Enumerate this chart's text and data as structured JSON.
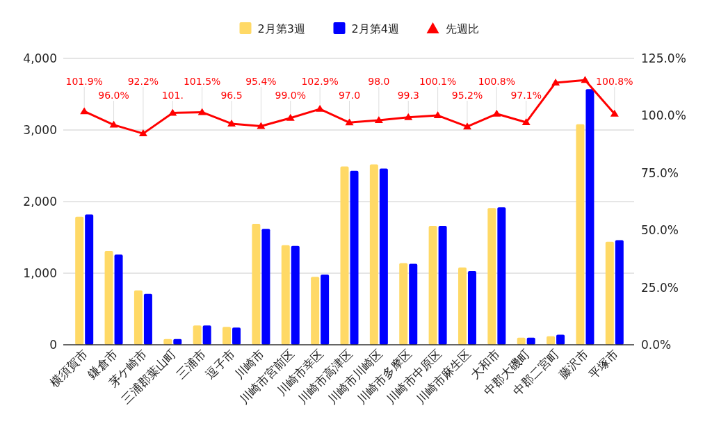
{
  "chart_data": {
    "type": "bar",
    "categories": [
      "横須賀市",
      "鎌倉市",
      "茅ケ崎市",
      "三浦郡葉山町",
      "三浦市",
      "逗子市",
      "川崎市",
      "川崎市宮前区",
      "川崎市幸区",
      "川崎市高津区",
      "川崎市川崎区",
      "川崎市多摩区",
      "川崎市中原区",
      "川崎市麻生区",
      "大和市",
      "中郡大磯町",
      "中郡二宮町",
      "藤沢市",
      "平塚市"
    ],
    "series": [
      {
        "name": "2月第3週",
        "color": "#ffd966",
        "values": [
          1790,
          1310,
          760,
          80,
          270,
          250,
          1690,
          1390,
          950,
          2490,
          2520,
          1140,
          1660,
          1080,
          1910,
          100,
          120,
          3080,
          1440
        ]
      },
      {
        "name": "2月第4週",
        "color": "#0000ff",
        "values": [
          1820,
          1260,
          710,
          80,
          270,
          240,
          1620,
          1380,
          980,
          2430,
          2460,
          1130,
          1660,
          1030,
          1920,
          100,
          140,
          3570,
          1460
        ]
      },
      {
        "name": "先週比",
        "color": "#ff0000",
        "type": "line",
        "axis": "y2",
        "values": [
          101.9,
          96.0,
          92.2,
          101.2,
          101.5,
          96.5,
          95.4,
          99.0,
          102.9,
          97.0,
          98.0,
          99.3,
          100.1,
          95.2,
          100.8,
          97.1,
          114.4,
          115.5,
          100.8
        ],
        "value_labels": [
          "101.9%",
          "96.0%",
          "92.2%",
          "101.",
          "101.5%",
          "96.5",
          "95.4%",
          "99.0%",
          "102.9%",
          "97.0",
          "98.0",
          "99.3",
          "100.1%",
          "95.2%",
          "100.8%",
          "97.1%",
          null,
          null,
          "100.8%"
        ]
      }
    ],
    "ylim": [
      0,
      4000
    ],
    "yticks": [
      {
        "value": 0,
        "label": "0"
      },
      {
        "value": 1000,
        "label": "1,000"
      },
      {
        "value": 2000,
        "label": "2,000"
      },
      {
        "value": 3000,
        "label": "3,000"
      },
      {
        "value": 4000,
        "label": "4,000"
      }
    ],
    "y2lim": [
      0,
      125
    ],
    "y2ticks": [
      {
        "value": 0,
        "label": "0.0%"
      },
      {
        "value": 25,
        "label": "25.0%"
      },
      {
        "value": 50,
        "label": "50.0%"
      },
      {
        "value": 75,
        "label": "75.0%"
      },
      {
        "value": 100,
        "label": "100.0%"
      },
      {
        "value": 125,
        "label": "125.0%"
      }
    ],
    "grid": "y",
    "legend": "top",
    "marker": "triangle"
  }
}
